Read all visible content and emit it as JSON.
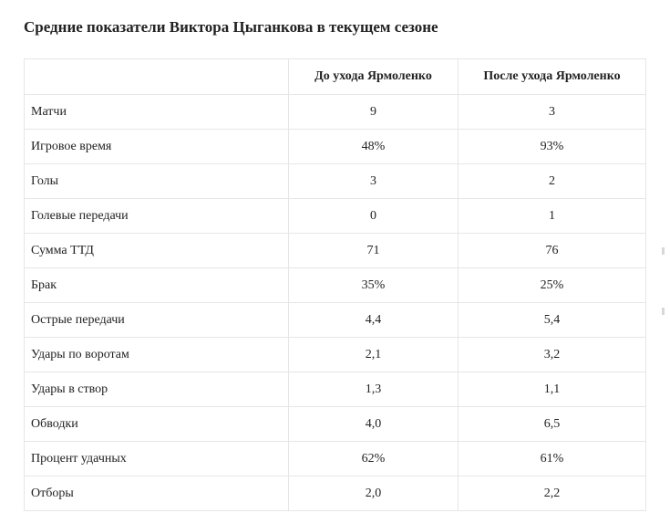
{
  "title": "Средние показатели Виктора Цыганкова в текущем сезоне",
  "table": {
    "headers": [
      "",
      "До ухода Ярмоленко",
      "После ухода Ярмоленко"
    ],
    "rows": [
      {
        "label": "Матчи",
        "before": "9",
        "after": "3"
      },
      {
        "label": "Игровое время",
        "before": "48%",
        "after": "93%"
      },
      {
        "label": "Голы",
        "before": "3",
        "after": "2"
      },
      {
        "label": "Голевые передачи",
        "before": "0",
        "after": "1"
      },
      {
        "label": "Сумма ТТД",
        "before": "71",
        "after": "76"
      },
      {
        "label": "Брак",
        "before": "35%",
        "after": "25%"
      },
      {
        "label": "Острые передачи",
        "before": "4,4",
        "after": "5,4"
      },
      {
        "label": "Удары по воротам",
        "before": "2,1",
        "after": "3,2"
      },
      {
        "label": "Удары в створ",
        "before": "1,3",
        "after": "1,1"
      },
      {
        "label": "Обводки",
        "before": "4,0",
        "after": "6,5"
      },
      {
        "label": "Процент удачных",
        "before": "62%",
        "after": "61%"
      },
      {
        "label": "Отборы",
        "before": "2,0",
        "after": "2,2"
      }
    ]
  }
}
